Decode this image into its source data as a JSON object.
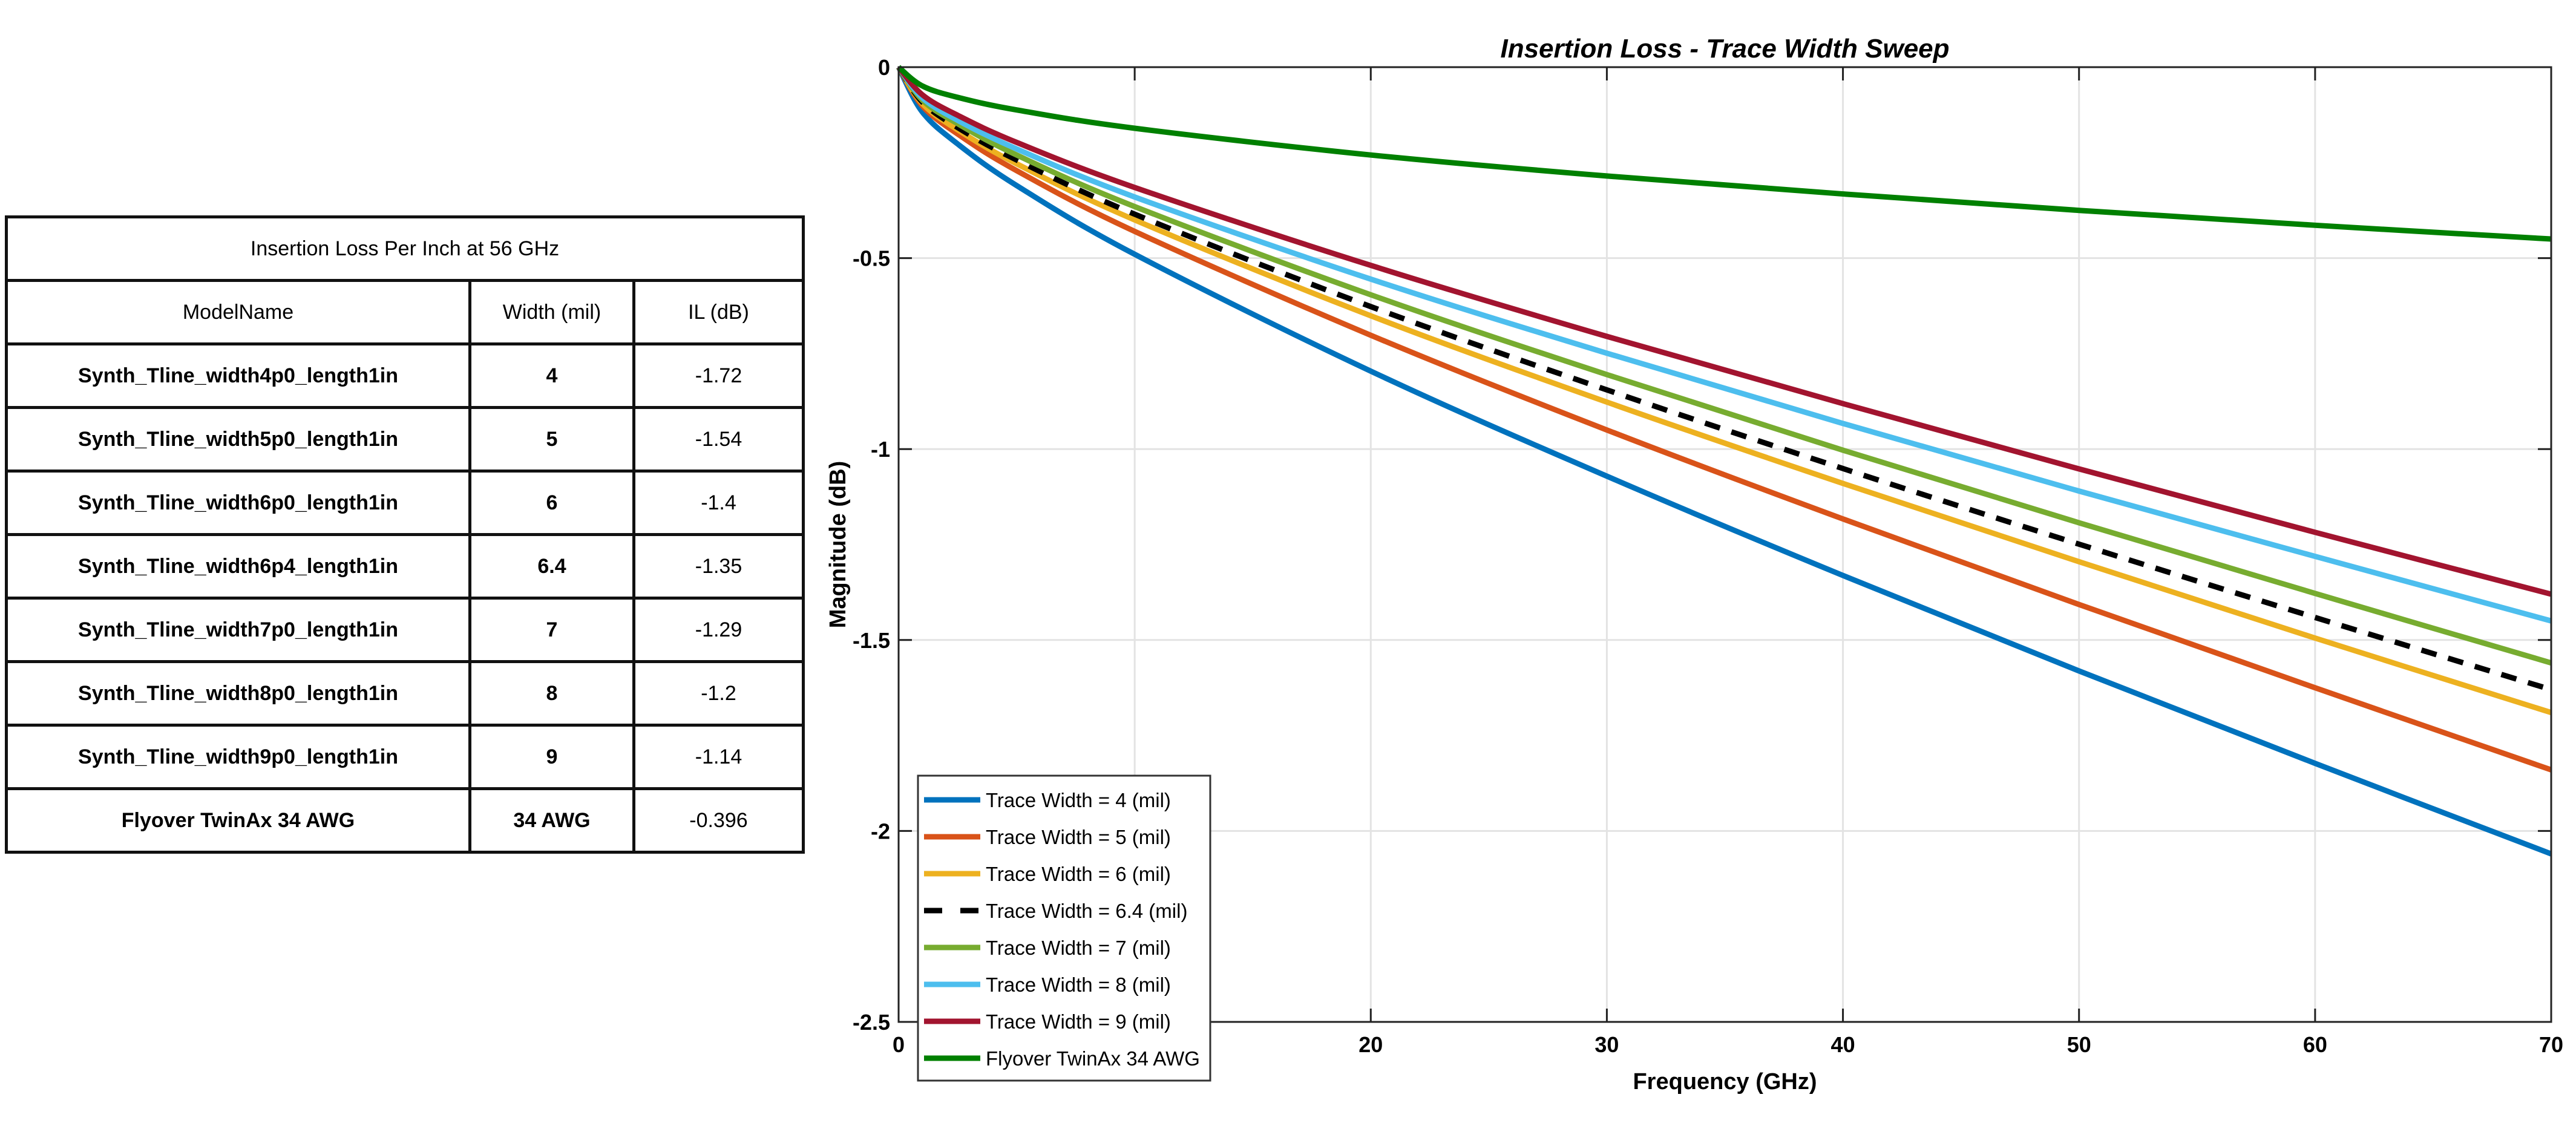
{
  "table": {
    "title": "Insertion Loss Per Inch at 56 GHz",
    "columns": [
      "ModelName",
      "Width (mil)",
      "IL (dB)"
    ],
    "rows": [
      [
        "Synth_Tline_width4p0_length1in",
        "4",
        "-1.72"
      ],
      [
        "Synth_Tline_width5p0_length1in",
        "5",
        "-1.54"
      ],
      [
        "Synth_Tline_width6p0_length1in",
        "6",
        "-1.4"
      ],
      [
        "Synth_Tline_width6p4_length1in",
        "6.4",
        "-1.35"
      ],
      [
        "Synth_Tline_width7p0_length1in",
        "7",
        "-1.29"
      ],
      [
        "Synth_Tline_width8p0_length1in",
        "8",
        "-1.2"
      ],
      [
        "Synth_Tline_width9p0_length1in",
        "9",
        "-1.14"
      ],
      [
        "Flyover TwinAx 34 AWG",
        "34 AWG",
        "-0.396"
      ]
    ]
  },
  "chart_data": {
    "type": "line",
    "title": "Insertion Loss - Trace Width Sweep",
    "xlabel": "Frequency (GHz)",
    "ylabel": "Magnitude (dB)",
    "xlim": [
      0,
      70
    ],
    "ylim": [
      -2.5,
      0
    ],
    "xticks": [
      0,
      10,
      20,
      30,
      40,
      50,
      60,
      70
    ],
    "yticks": [
      0,
      -0.5,
      -1,
      -1.5,
      -2,
      -2.5
    ],
    "ytick_labels": [
      "0",
      "-0.5",
      "-1",
      "-1.5",
      "-2",
      "-2.5"
    ],
    "grid": true,
    "legend_position": "bottom-left",
    "x": [
      0,
      1,
      2.5,
      5,
      10,
      20,
      30,
      40,
      50,
      60,
      70
    ],
    "series": [
      {
        "name": "Trace Width =  4 (mil)",
        "color": "#0072BD",
        "dash": false,
        "values": [
          0,
          -0.117,
          -0.201,
          -0.31,
          -0.49,
          -0.796,
          -1.071,
          -1.331,
          -1.581,
          -1.823,
          -2.06
        ]
      },
      {
        "name": "Trace Width =  5 (mil)",
        "color": "#D95319",
        "dash": false,
        "values": [
          0,
          -0.101,
          -0.175,
          -0.271,
          -0.43,
          -0.702,
          -0.95,
          -1.183,
          -1.407,
          -1.625,
          -1.84
        ]
      },
      {
        "name": "Trace Width =  6 (mil)",
        "color": "#EDB120",
        "dash": false,
        "values": [
          0,
          -0.095,
          -0.164,
          -0.253,
          -0.4,
          -0.651,
          -0.877,
          -1.09,
          -1.295,
          -1.495,
          -1.69
        ]
      },
      {
        "name": "Trace Width =  6.4 (mil)",
        "color": "#000000",
        "dash": true,
        "values": [
          0,
          -0.091,
          -0.158,
          -0.243,
          -0.385,
          -0.627,
          -0.845,
          -1.051,
          -1.249,
          -1.441,
          -1.63
        ]
      },
      {
        "name": "Trace Width =  7 (mil)",
        "color": "#77AC30",
        "dash": false,
        "values": [
          0,
          -0.086,
          -0.148,
          -0.23,
          -0.365,
          -0.596,
          -0.805,
          -1.003,
          -1.193,
          -1.378,
          -1.56
        ]
      },
      {
        "name": "Trace Width =  8 (mil)",
        "color": "#4DBEEE",
        "dash": false,
        "values": [
          0,
          -0.08,
          -0.139,
          -0.214,
          -0.34,
          -0.555,
          -0.749,
          -0.933,
          -1.11,
          -1.281,
          -1.45
        ]
      },
      {
        "name": "Trace Width =  9 (mil)",
        "color": "#A2142F",
        "dash": false,
        "values": [
          0,
          -0.072,
          -0.126,
          -0.197,
          -0.315,
          -0.519,
          -0.705,
          -0.881,
          -1.052,
          -1.218,
          -1.38
        ]
      },
      {
        "name": "Flyover TwinAx 34 AWG",
        "color": "#008000",
        "dash": false,
        "values": [
          0,
          -0.049,
          -0.079,
          -0.112,
          -0.16,
          -0.23,
          -0.285,
          -0.332,
          -0.375,
          -0.414,
          -0.45
        ]
      }
    ]
  }
}
